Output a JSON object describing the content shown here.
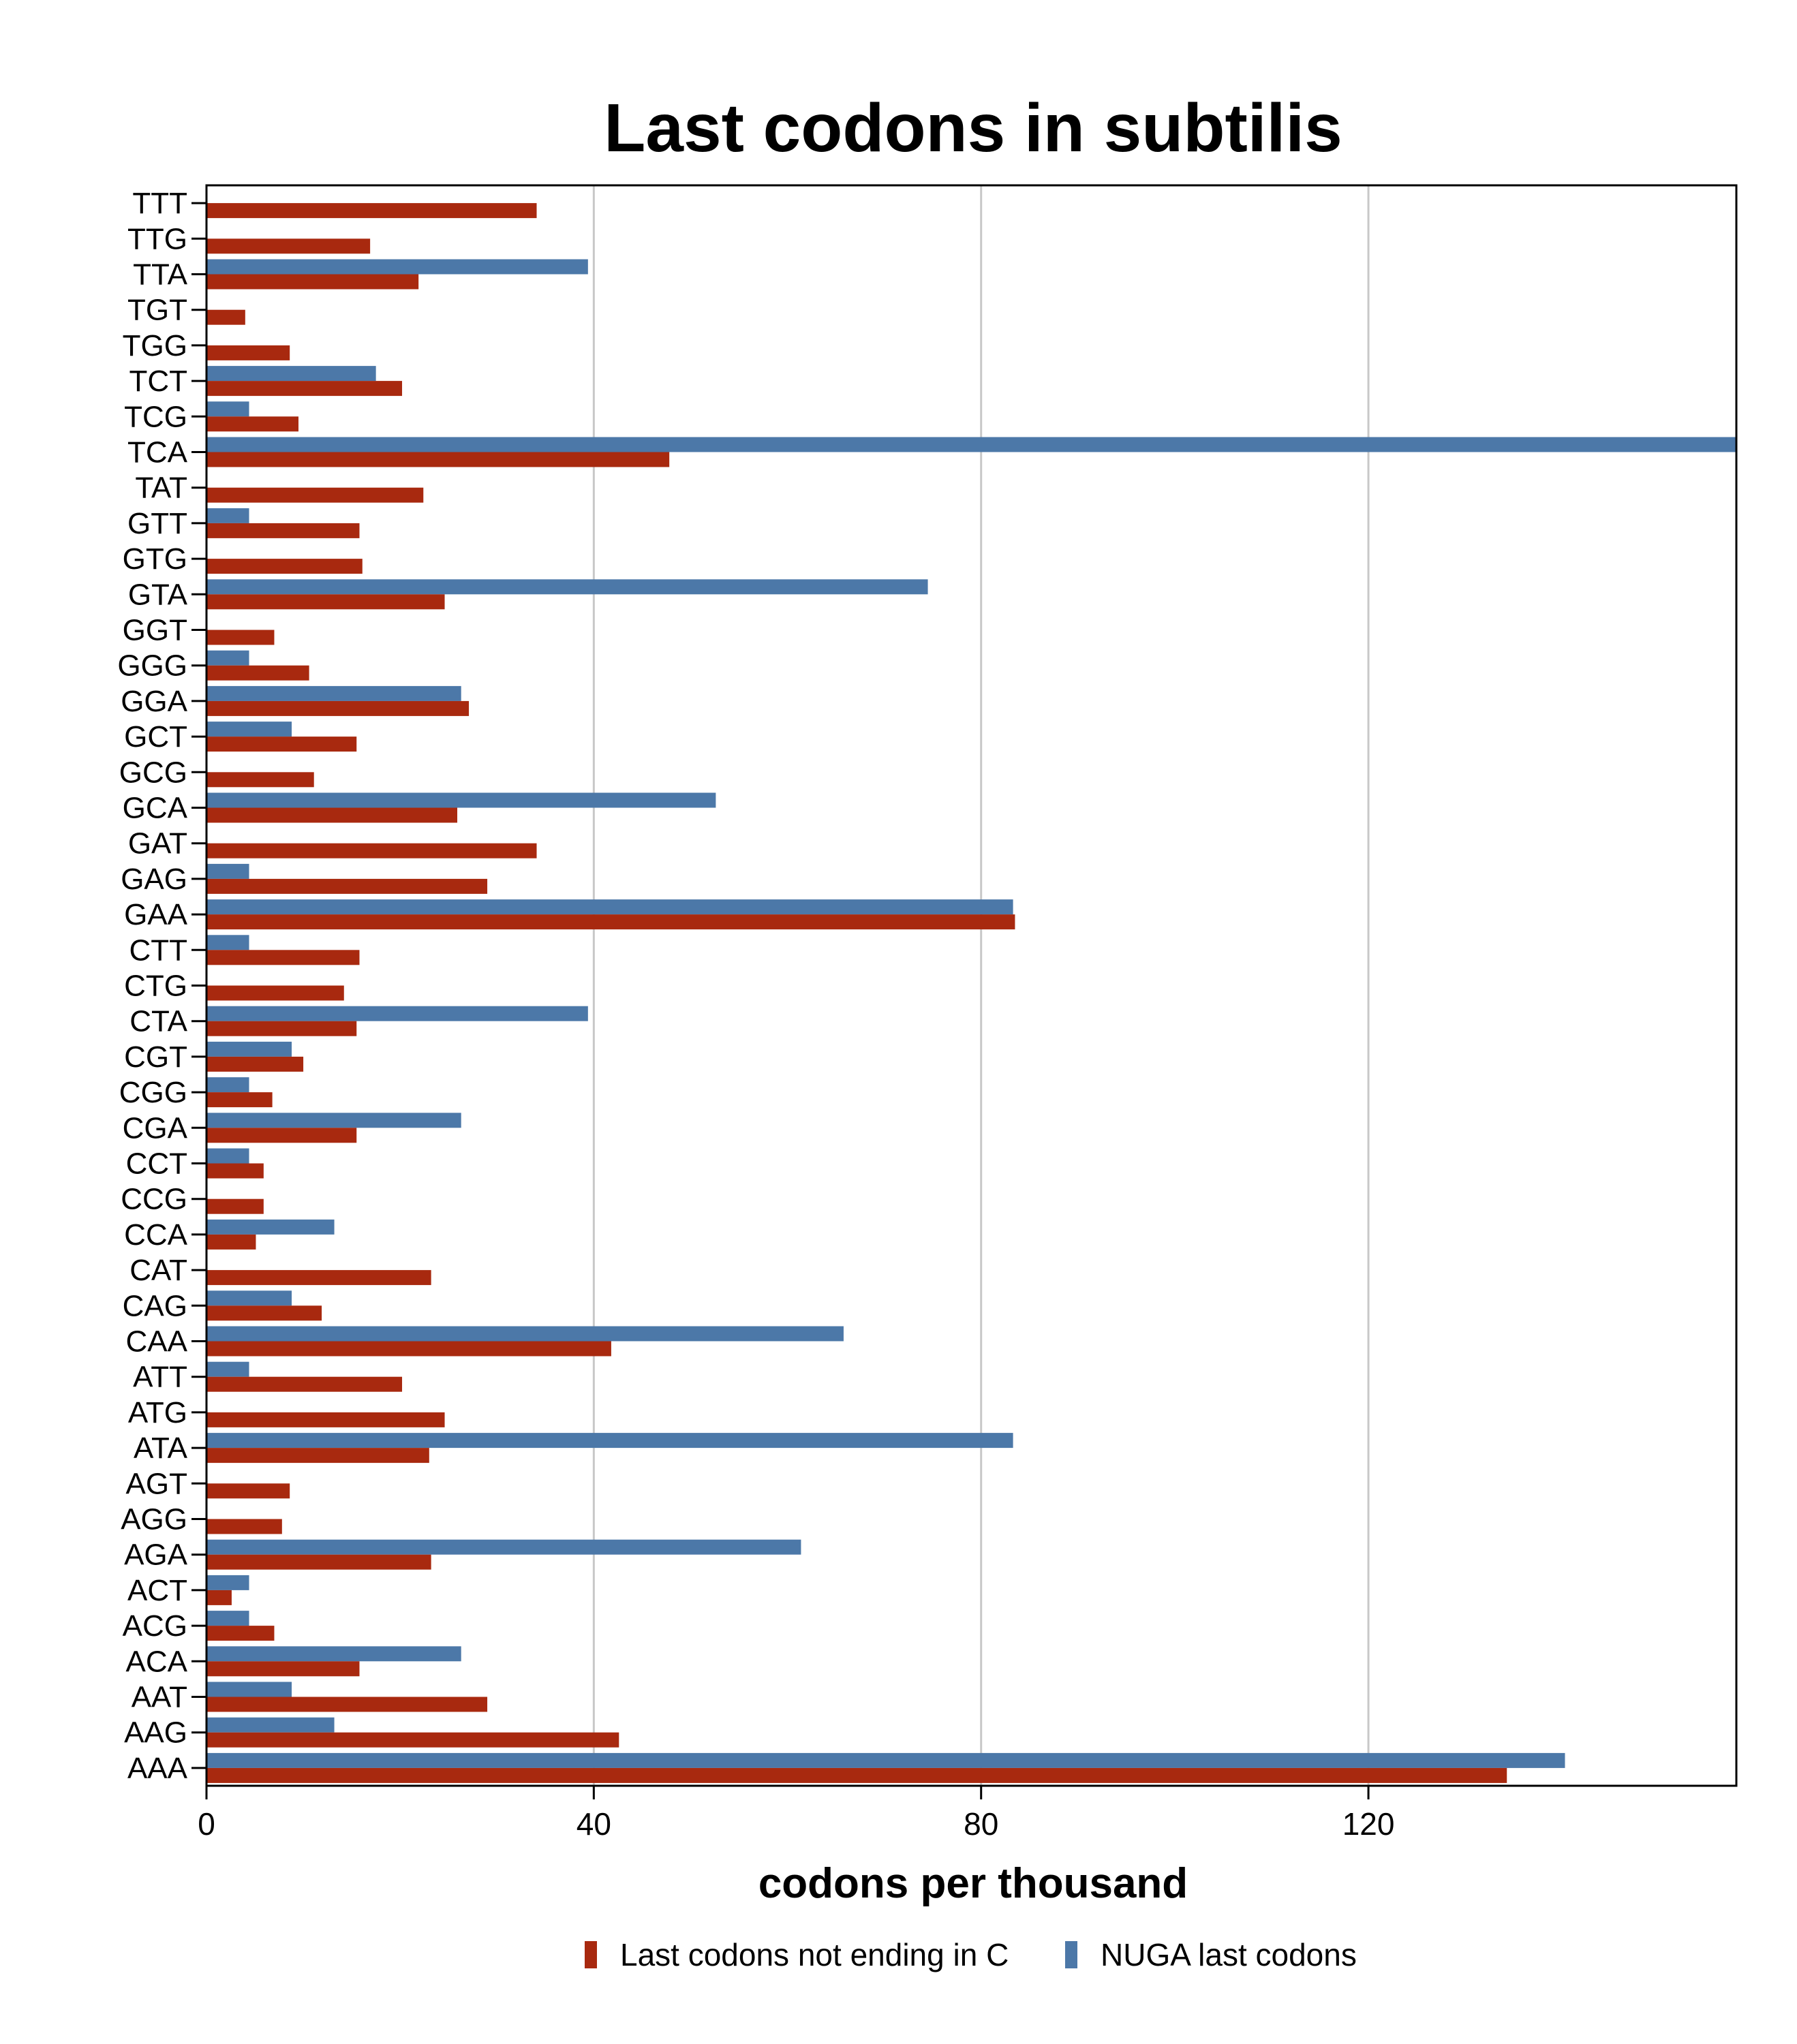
{
  "chart_data": {
    "type": "bar",
    "orientation": "horizontal",
    "title": "Last codons in subtilis",
    "xlabel": "codons per thousand",
    "ylabel": "",
    "xlim": [
      0,
      158
    ],
    "xticks": [
      0,
      40,
      80,
      120
    ],
    "grid": true,
    "legend_position": "bottom",
    "categories": [
      "TTT",
      "TTG",
      "TTA",
      "TGT",
      "TGG",
      "TCT",
      "TCG",
      "TCA",
      "TAT",
      "GTT",
      "GTG",
      "GTA",
      "GGT",
      "GGG",
      "GGA",
      "GCT",
      "GCG",
      "GCA",
      "GAT",
      "GAG",
      "GAA",
      "CTT",
      "CTG",
      "CTA",
      "CGT",
      "CGG",
      "CGA",
      "CCT",
      "CCG",
      "CCA",
      "CAT",
      "CAG",
      "CAA",
      "ATT",
      "ATG",
      "ATA",
      "AGT",
      "AGG",
      "AGA",
      "ACT",
      "ACG",
      "ACA",
      "AAT",
      "AAG",
      "AAA"
    ],
    "series": [
      {
        "name": "Last codons not ending in C",
        "color": "#a8290f",
        "values": [
          34.1,
          16.9,
          21.9,
          4.0,
          8.6,
          20.2,
          9.5,
          47.8,
          22.4,
          15.8,
          16.1,
          24.6,
          7.0,
          10.6,
          27.1,
          15.5,
          11.1,
          25.9,
          34.1,
          29.0,
          83.5,
          15.8,
          14.2,
          15.5,
          10.0,
          6.8,
          15.5,
          5.9,
          5.9,
          5.1,
          23.2,
          11.9,
          41.8,
          20.2,
          24.6,
          23.0,
          8.6,
          7.8,
          23.2,
          2.6,
          7.0,
          15.8,
          29.0,
          42.6,
          134.3
        ]
      },
      {
        "name": "NUGA last codons",
        "color": "#4c78a8",
        "values": [
          0,
          0,
          39.4,
          0,
          0,
          17.5,
          4.4,
          158.0,
          0,
          4.4,
          0,
          74.5,
          0,
          4.4,
          26.3,
          8.8,
          0,
          52.6,
          0,
          4.4,
          83.3,
          4.4,
          0,
          39.4,
          8.8,
          4.4,
          26.3,
          4.4,
          0,
          13.2,
          0,
          8.8,
          65.8,
          4.4,
          0,
          83.3,
          0,
          0,
          61.4,
          4.4,
          4.4,
          26.3,
          8.8,
          13.2,
          140.3
        ]
      }
    ]
  }
}
